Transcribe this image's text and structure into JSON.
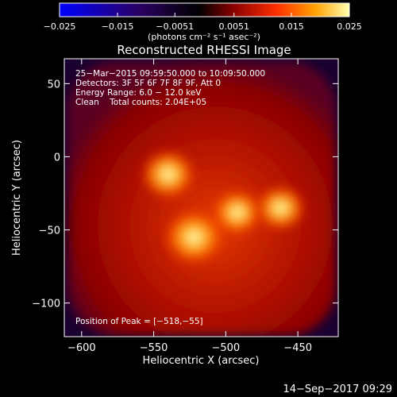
{
  "chart_data": {
    "type": "heatmap",
    "title": "Reconstructed RHESSI Image",
    "xlabel": "Heliocentric X (arcsec)",
    "ylabel": "Heliocentric Y (arcsec)",
    "xlim": [
      -612,
      -422
    ],
    "ylim": [
      -123,
      67
    ],
    "x_ticks": [
      -600,
      -550,
      -500,
      -450
    ],
    "y_ticks": [
      50,
      0,
      -50,
      -100
    ],
    "colorbar": {
      "min": -0.025,
      "max": 0.025,
      "ticks": [
        "−0.025",
        "−0.015",
        "−0.0051",
        "0.0051",
        "0.015",
        "0.025"
      ],
      "tick_values": [
        -0.025,
        -0.015,
        -0.0051,
        0.0051,
        0.015,
        0.025
      ],
      "units": "(photons cm⁻² s⁻¹ asec⁻²)",
      "colormap": [
        "#0000ff",
        "#1a0050",
        "#000000",
        "#6a0000",
        "#ff2a00",
        "#ff9a00",
        "#ffff80",
        "#ffffff"
      ]
    },
    "annotations": [
      "25−Mar−2015 09:59:50.000 to 10:09:50.000",
      "Detectors: 3F 5F 6F 7F 8F 9F, Att 0",
      "Energy Range: 6.0 − 12.0 keV",
      "Clean    Total counts: 2.04E+05"
    ],
    "peak_label": "Position of Peak = [−518,−55]",
    "sources": [
      {
        "x": -522,
        "y": -55,
        "intensity": 0.025
      },
      {
        "x": -540,
        "y": -12,
        "intensity": 0.021
      },
      {
        "x": -492,
        "y": -38,
        "intensity": 0.018
      },
      {
        "x": -462,
        "y": -35,
        "intensity": 0.018
      }
    ]
  },
  "footer": {
    "date": "14−Sep−2017 09:29"
  }
}
